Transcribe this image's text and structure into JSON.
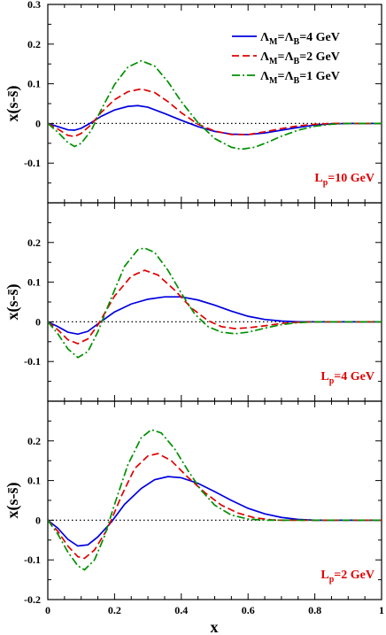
{
  "chart_data": {
    "type": "line",
    "xlabel": "x",
    "xlim": [
      0,
      1
    ],
    "x_ticks": [
      "0",
      "0.2",
      "0.4",
      "0.6",
      "0.8",
      "1"
    ],
    "colors": {
      "solid": "#0000e0",
      "dashed": "#e00000",
      "dashdot": "#009000",
      "label": "#e00000",
      "zero_line": "#000000"
    },
    "legend": {
      "placement": "top-right",
      "entries": [
        {
          "label": "ΛM=ΛB=4 GeV",
          "sym": "Λ",
          "sub": "M",
          "mid": "=Λ",
          "sub2": "B",
          "rest": "=4 GeV",
          "style": "solid"
        },
        {
          "label": "ΛM=ΛB=2 GeV",
          "sym": "Λ",
          "sub": "M",
          "mid": "=Λ",
          "sub2": "B",
          "rest": "=2 GeV",
          "style": "dashed"
        },
        {
          "label": "ΛM=ΛB=1 GeV",
          "sym": "Λ",
          "sub": "M",
          "mid": "=Λ",
          "sub2": "B",
          "rest": "=1 GeV",
          "style": "dashdot"
        }
      ]
    },
    "panels": [
      {
        "label_main": "L",
        "label_sub": "p",
        "label_rest": "=10 GeV",
        "ylabel": "x(s-s̄)",
        "ylim": [
          -0.2,
          0.3
        ],
        "y_ticks": [
          {
            "v": 0.3,
            "t": "0.3"
          },
          {
            "v": 0.2,
            "t": "0.2"
          },
          {
            "v": 0.1,
            "t": "0.1"
          },
          {
            "v": 0,
            "t": "0"
          },
          {
            "v": -0.1,
            "t": "-0.1"
          }
        ],
        "series": [
          {
            "style": "solid",
            "points": [
              [
                0,
                0
              ],
              [
                0.03,
                -0.008
              ],
              [
                0.06,
                -0.016
              ],
              [
                0.08,
                -0.017
              ],
              [
                0.1,
                -0.012
              ],
              [
                0.13,
                0.002
              ],
              [
                0.16,
                0.018
              ],
              [
                0.2,
                0.034
              ],
              [
                0.24,
                0.043
              ],
              [
                0.27,
                0.045
              ],
              [
                0.3,
                0.041
              ],
              [
                0.35,
                0.025
              ],
              [
                0.4,
                0.008
              ],
              [
                0.45,
                -0.008
              ],
              [
                0.5,
                -0.02
              ],
              [
                0.55,
                -0.027
              ],
              [
                0.6,
                -0.028
              ],
              [
                0.65,
                -0.024
              ],
              [
                0.7,
                -0.017
              ],
              [
                0.75,
                -0.01
              ],
              [
                0.8,
                -0.004
              ],
              [
                0.85,
                -0.001
              ],
              [
                0.9,
                0
              ],
              [
                1,
                0
              ]
            ]
          },
          {
            "style": "dashed",
            "points": [
              [
                0,
                0
              ],
              [
                0.03,
                -0.014
              ],
              [
                0.06,
                -0.03
              ],
              [
                0.08,
                -0.033
              ],
              [
                0.1,
                -0.025
              ],
              [
                0.13,
                -0.003
              ],
              [
                0.16,
                0.028
              ],
              [
                0.2,
                0.06
              ],
              [
                0.24,
                0.08
              ],
              [
                0.28,
                0.087
              ],
              [
                0.32,
                0.078
              ],
              [
                0.36,
                0.055
              ],
              [
                0.4,
                0.027
              ],
              [
                0.45,
                -0.002
              ],
              [
                0.5,
                -0.019
              ],
              [
                0.55,
                -0.028
              ],
              [
                0.6,
                -0.028
              ],
              [
                0.65,
                -0.021
              ],
              [
                0.7,
                -0.013
              ],
              [
                0.75,
                -0.006
              ],
              [
                0.8,
                -0.002
              ],
              [
                0.85,
                0
              ],
              [
                1,
                0
              ]
            ]
          },
          {
            "style": "dashdot",
            "points": [
              [
                0,
                0
              ],
              [
                0.03,
                -0.022
              ],
              [
                0.06,
                -0.048
              ],
              [
                0.08,
                -0.058
              ],
              [
                0.1,
                -0.05
              ],
              [
                0.13,
                -0.018
              ],
              [
                0.16,
                0.035
              ],
              [
                0.2,
                0.098
              ],
              [
                0.24,
                0.142
              ],
              [
                0.28,
                0.158
              ],
              [
                0.32,
                0.145
              ],
              [
                0.36,
                0.105
              ],
              [
                0.4,
                0.055
              ],
              [
                0.45,
                0.002
              ],
              [
                0.5,
                -0.038
              ],
              [
                0.55,
                -0.06
              ],
              [
                0.58,
                -0.065
              ],
              [
                0.62,
                -0.06
              ],
              [
                0.66,
                -0.047
              ],
              [
                0.7,
                -0.032
              ],
              [
                0.75,
                -0.017
              ],
              [
                0.8,
                -0.007
              ],
              [
                0.85,
                -0.002
              ],
              [
                0.9,
                0
              ],
              [
                1,
                0
              ]
            ]
          }
        ]
      },
      {
        "label_main": "L",
        "label_sub": "p",
        "label_rest": "=4 GeV",
        "ylabel": "x(s-s̄)",
        "ylim": [
          -0.2,
          0.3
        ],
        "y_ticks": [
          {
            "v": 0.2,
            "t": "0.2"
          },
          {
            "v": 0.1,
            "t": "0.1"
          },
          {
            "v": 0,
            "t": "0"
          },
          {
            "v": -0.1,
            "t": "-0.1"
          }
        ],
        "series": [
          {
            "style": "solid",
            "points": [
              [
                0,
                0
              ],
              [
                0.03,
                -0.012
              ],
              [
                0.06,
                -0.026
              ],
              [
                0.09,
                -0.031
              ],
              [
                0.12,
                -0.024
              ],
              [
                0.15,
                -0.005
              ],
              [
                0.2,
                0.025
              ],
              [
                0.25,
                0.045
              ],
              [
                0.3,
                0.057
              ],
              [
                0.35,
                0.063
              ],
              [
                0.4,
                0.063
              ],
              [
                0.45,
                0.055
              ],
              [
                0.5,
                0.042
              ],
              [
                0.55,
                0.027
              ],
              [
                0.6,
                0.014
              ],
              [
                0.65,
                0.006
              ],
              [
                0.7,
                0.002
              ],
              [
                0.75,
                0
              ],
              [
                1,
                0
              ]
            ]
          },
          {
            "style": "dashed",
            "points": [
              [
                0,
                0
              ],
              [
                0.03,
                -0.02
              ],
              [
                0.06,
                -0.045
              ],
              [
                0.09,
                -0.055
              ],
              [
                0.12,
                -0.043
              ],
              [
                0.15,
                -0.008
              ],
              [
                0.2,
                0.065
              ],
              [
                0.25,
                0.115
              ],
              [
                0.29,
                0.13
              ],
              [
                0.33,
                0.118
              ],
              [
                0.38,
                0.08
              ],
              [
                0.43,
                0.035
              ],
              [
                0.48,
                0.003
              ],
              [
                0.52,
                -0.012
              ],
              [
                0.56,
                -0.017
              ],
              [
                0.6,
                -0.015
              ],
              [
                0.65,
                -0.01
              ],
              [
                0.7,
                -0.004
              ],
              [
                0.75,
                -0.001
              ],
              [
                0.8,
                0
              ],
              [
                1,
                0
              ]
            ]
          },
          {
            "style": "dashdot",
            "points": [
              [
                0,
                0
              ],
              [
                0.03,
                -0.03
              ],
              [
                0.06,
                -0.068
              ],
              [
                0.09,
                -0.09
              ],
              [
                0.12,
                -0.075
              ],
              [
                0.15,
                -0.025
              ],
              [
                0.19,
                0.06
              ],
              [
                0.23,
                0.14
              ],
              [
                0.27,
                0.182
              ],
              [
                0.29,
                0.186
              ],
              [
                0.32,
                0.175
              ],
              [
                0.36,
                0.13
              ],
              [
                0.4,
                0.072
              ],
              [
                0.44,
                0.02
              ],
              [
                0.48,
                -0.012
              ],
              [
                0.52,
                -0.026
              ],
              [
                0.56,
                -0.03
              ],
              [
                0.6,
                -0.026
              ],
              [
                0.65,
                -0.016
              ],
              [
                0.7,
                -0.007
              ],
              [
                0.75,
                -0.002
              ],
              [
                0.8,
                0
              ],
              [
                1,
                0
              ]
            ]
          }
        ]
      },
      {
        "label_main": "L",
        "label_sub": "p",
        "label_rest": "=2 GeV",
        "ylabel": "x(s-s̄)",
        "ylim": [
          -0.2,
          0.3
        ],
        "y_ticks": [
          {
            "v": 0.2,
            "t": "0.2"
          },
          {
            "v": 0.1,
            "t": "0.1"
          },
          {
            "v": 0,
            "t": "0"
          },
          {
            "v": -0.1,
            "t": "-0.1"
          },
          {
            "v": -0.2,
            "t": "-0.2"
          }
        ],
        "series": [
          {
            "style": "solid",
            "points": [
              [
                0,
                0
              ],
              [
                0.03,
                -0.02
              ],
              [
                0.06,
                -0.048
              ],
              [
                0.09,
                -0.065
              ],
              [
                0.12,
                -0.062
              ],
              [
                0.15,
                -0.042
              ],
              [
                0.19,
                -0.005
              ],
              [
                0.23,
                0.04
              ],
              [
                0.28,
                0.08
              ],
              [
                0.32,
                0.102
              ],
              [
                0.36,
                0.11
              ],
              [
                0.4,
                0.107
              ],
              [
                0.45,
                0.093
              ],
              [
                0.5,
                0.072
              ],
              [
                0.55,
                0.05
              ],
              [
                0.6,
                0.03
              ],
              [
                0.65,
                0.016
              ],
              [
                0.7,
                0.007
              ],
              [
                0.75,
                0.002
              ],
              [
                0.8,
                0
              ],
              [
                1,
                0
              ]
            ]
          },
          {
            "style": "dashed",
            "points": [
              [
                0,
                0
              ],
              [
                0.03,
                -0.028
              ],
              [
                0.06,
                -0.065
              ],
              [
                0.09,
                -0.092
              ],
              [
                0.11,
                -0.096
              ],
              [
                0.14,
                -0.075
              ],
              [
                0.18,
                -0.02
              ],
              [
                0.22,
                0.06
              ],
              [
                0.26,
                0.13
              ],
              [
                0.3,
                0.162
              ],
              [
                0.33,
                0.168
              ],
              [
                0.37,
                0.15
              ],
              [
                0.42,
                0.108
              ],
              [
                0.47,
                0.07
              ],
              [
                0.52,
                0.038
              ],
              [
                0.57,
                0.018
              ],
              [
                0.62,
                0.006
              ],
              [
                0.67,
                0.001
              ],
              [
                0.7,
                0
              ],
              [
                1,
                0
              ]
            ]
          },
          {
            "style": "dashdot",
            "points": [
              [
                0,
                0
              ],
              [
                0.03,
                -0.035
              ],
              [
                0.06,
                -0.08
              ],
              [
                0.09,
                -0.115
              ],
              [
                0.11,
                -0.125
              ],
              [
                0.14,
                -0.1
              ],
              [
                0.17,
                -0.04
              ],
              [
                0.2,
                0.04
              ],
              [
                0.24,
                0.14
              ],
              [
                0.28,
                0.208
              ],
              [
                0.31,
                0.228
              ],
              [
                0.34,
                0.22
              ],
              [
                0.38,
                0.18
              ],
              [
                0.42,
                0.125
              ],
              [
                0.46,
                0.075
              ],
              [
                0.5,
                0.038
              ],
              [
                0.55,
                0.013
              ],
              [
                0.6,
                0.003
              ],
              [
                0.65,
                0
              ],
              [
                1,
                0
              ]
            ]
          }
        ]
      }
    ]
  }
}
